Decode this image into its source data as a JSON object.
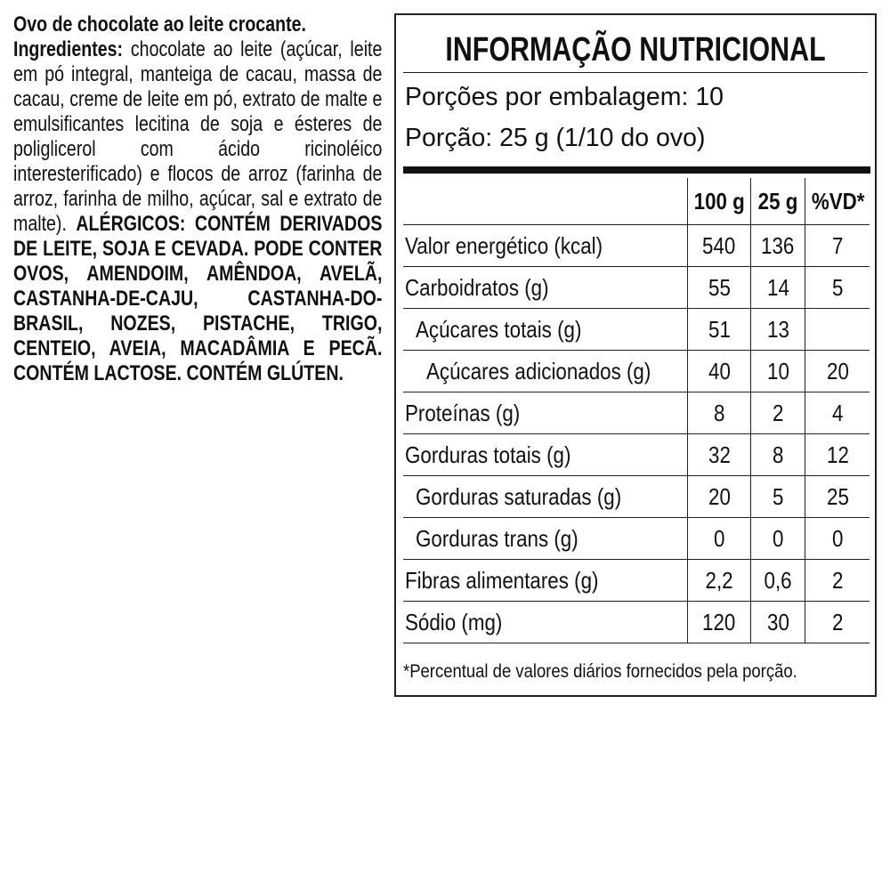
{
  "product": {
    "name": "Ovo de chocolate ao leite crocante."
  },
  "ingredients": {
    "label": "Ingredientes:",
    "text": "chocolate ao leite (açúcar, leite em pó integral, manteiga de cacau, massa de cacau, creme de leite em pó, extrato de malte e emulsificantes lecitina de soja e ésteres de poliglicerol com ácido ricinoléico interesterificado) e flocos de arroz (farinha de arroz, farinha de milho, açúcar, sal e extrato de malte).",
    "allergens_label": "ALÉRGICOS:",
    "allergens": "CONTÉM DERIVADOS DE LEITE, SOJA E CEVADA. PODE CONTER OVOS, AMENDOIM, AMÊNDOA, AVELÃ, CASTANHA-DE-CAJU, CASTANHA-DO-BRASIL, NOZES, PISTACHE, TRIGO, CENTEIO, AVEIA, MACADÂMIA E PECÃ. CONTÉM LACTOSE. CONTÉM GLÚTEN."
  },
  "nutrition": {
    "title": "INFORMAÇÃO NUTRICIONAL",
    "servings": "Porções por embalagem: 10",
    "serving": "Porção: 25 g (1/10 do ovo)",
    "header": [
      "100 g",
      "25 g",
      "%VD*"
    ],
    "rows": [
      {
        "label": "Valor energético (kcal)",
        "indent": 0,
        "cells": [
          "540",
          "136",
          "7"
        ]
      },
      {
        "label": "Carboidratos (g)",
        "indent": 0,
        "cells": [
          "55",
          "14",
          "5"
        ]
      },
      {
        "label": "Açúcares totais (g)",
        "indent": 1,
        "cells": [
          "51",
          "13",
          null
        ]
      },
      {
        "label": "Açúcares adicionados (g)",
        "indent": 2,
        "cells": [
          "40",
          "10",
          "20"
        ]
      },
      {
        "label": "Proteínas (g)",
        "indent": 0,
        "cells": [
          "8",
          "2",
          "4"
        ]
      },
      {
        "label": "Gorduras totais (g)",
        "indent": 0,
        "cells": [
          "32",
          "8",
          "12"
        ]
      },
      {
        "label": "Gorduras saturadas (g)",
        "indent": 1,
        "cells": [
          "20",
          "5",
          "25"
        ]
      },
      {
        "label": "Gorduras trans (g)",
        "indent": 1,
        "cells": [
          "0",
          "0",
          "0"
        ]
      },
      {
        "label": "Fibras alimentares (g)",
        "indent": 0,
        "cells": [
          "2,2",
          "0,6",
          "2"
        ]
      },
      {
        "label": "Sódio (mg)",
        "indent": 0,
        "cells": [
          "120",
          "30",
          "2"
        ]
      }
    ],
    "footnote": "*Percentual de valores diários fornecidos pela porção."
  }
}
